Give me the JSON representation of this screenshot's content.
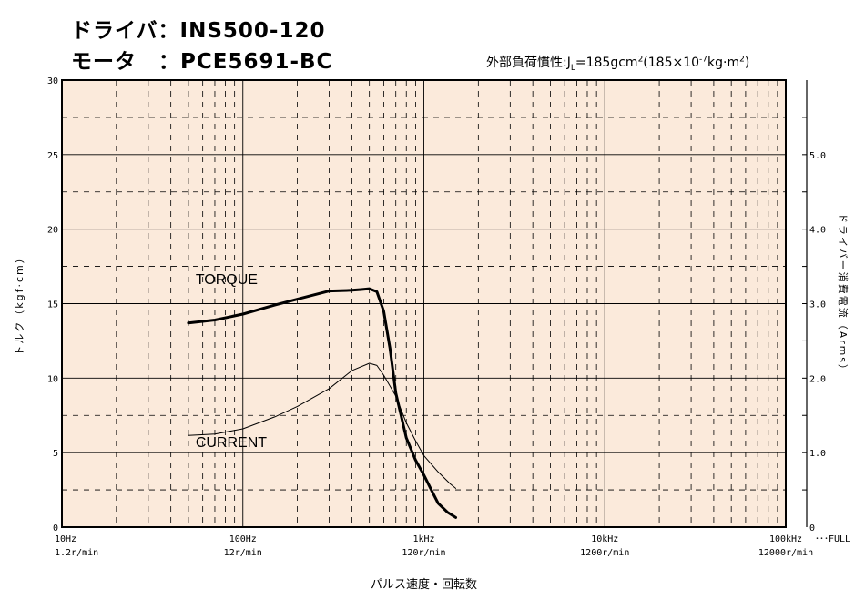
{
  "header": {
    "driver_line": "ドライバ：INS500-120",
    "motor_line": "モータ　：PCE5691-BC",
    "inertia_prefix": "外部負荷慣性:J",
    "inertia_sub": "L",
    "inertia_value": "=185gcm",
    "inertia_exp": "2",
    "inertia_paren": "(185×10",
    "inertia_paren_exp": "-7",
    "inertia_unit": "kg·m",
    "inertia_unit_exp": "2",
    "inertia_close": ")"
  },
  "chart_data": {
    "type": "line",
    "xscale": "log",
    "xlim": [
      10,
      100000
    ],
    "xlabel": "パルス速度・回転数",
    "ylabel_left": "トルク（kgf·cm）",
    "ylabel_right": "ドライバー消費電流（Arms）",
    "ylim_left": [
      0,
      30
    ],
    "ylim_right": [
      0,
      6
    ],
    "left_ticks": [
      "0",
      "5",
      "10",
      "15",
      "20",
      "25",
      "30"
    ],
    "right_ticks": [
      "0",
      "1.0",
      "2.0",
      "3.0",
      "4.0",
      "5.0"
    ],
    "x_ticks": [
      {
        "hz": "10Hz",
        "rpm": "1.2r/min"
      },
      {
        "hz": "100Hz",
        "rpm": "12r/min"
      },
      {
        "hz": "1kHz",
        "rpm": "120r/min"
      },
      {
        "hz": "10kHz",
        "rpm": "1200r/min"
      },
      {
        "hz": "100kHz",
        "rpm": "12000r/min"
      }
    ],
    "full_label": "･･･FULL",
    "background": "#fbeadb",
    "series": [
      {
        "name": "TORQUE",
        "axis": "left",
        "points": [
          [
            50,
            13.7
          ],
          [
            70,
            13.9
          ],
          [
            100,
            14.3
          ],
          [
            150,
            14.9
          ],
          [
            200,
            15.3
          ],
          [
            300,
            15.85
          ],
          [
            400,
            15.9
          ],
          [
            450,
            15.95
          ],
          [
            500,
            16.0
          ],
          [
            550,
            15.8
          ],
          [
            600,
            14.5
          ],
          [
            650,
            12.0
          ],
          [
            700,
            9.0
          ],
          [
            800,
            6.0
          ],
          [
            900,
            4.5
          ],
          [
            1000,
            3.5
          ],
          [
            1100,
            2.5
          ],
          [
            1200,
            1.6
          ],
          [
            1350,
            1.0
          ],
          [
            1500,
            0.65
          ]
        ]
      },
      {
        "name": "CURRENT",
        "axis": "right",
        "points": [
          [
            50,
            1.23
          ],
          [
            70,
            1.25
          ],
          [
            100,
            1.32
          ],
          [
            150,
            1.48
          ],
          [
            200,
            1.62
          ],
          [
            300,
            1.86
          ],
          [
            400,
            2.1
          ],
          [
            500,
            2.2
          ],
          [
            550,
            2.17
          ],
          [
            600,
            2.04
          ],
          [
            700,
            1.76
          ],
          [
            800,
            1.4
          ],
          [
            900,
            1.16
          ],
          [
            1000,
            0.96
          ],
          [
            1200,
            0.74
          ],
          [
            1400,
            0.58
          ],
          [
            1500,
            0.52
          ]
        ]
      }
    ]
  }
}
